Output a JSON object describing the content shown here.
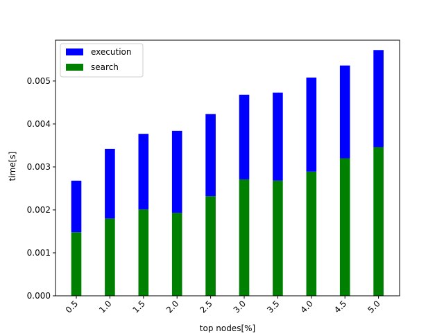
{
  "chart_data": {
    "type": "bar",
    "stacked": true,
    "title": "",
    "xlabel": "top nodes[%]",
    "ylabel": "time[s]",
    "categories": [
      "0.5",
      "1.0",
      "1.5",
      "2.0",
      "2.5",
      "3.0",
      "3.5",
      "4.0",
      "4.5",
      "5.0"
    ],
    "series": [
      {
        "name": "search",
        "color": "#008000",
        "values": [
          0.00148,
          0.0018,
          0.00201,
          0.00193,
          0.00232,
          0.00271,
          0.00268,
          0.00289,
          0.0032,
          0.00346
        ]
      },
      {
        "name": "execution",
        "color": "#0000ff",
        "values": [
          0.0012,
          0.00162,
          0.00176,
          0.00191,
          0.00191,
          0.00197,
          0.00205,
          0.00219,
          0.00216,
          0.00226
        ]
      }
    ],
    "ylim": [
      0,
      0.00595
    ],
    "yticks": [
      "0.000",
      "0.001",
      "0.002",
      "0.003",
      "0.004",
      "0.005"
    ],
    "ytick_values": [
      0,
      0.001,
      0.002,
      0.003,
      0.004,
      0.005
    ],
    "xtick_rotation": 45,
    "legend": {
      "location": "upper left",
      "entries": [
        {
          "label": "execution",
          "color": "#0000ff"
        },
        {
          "label": "search",
          "color": "#008000"
        }
      ]
    },
    "grid": false
  }
}
